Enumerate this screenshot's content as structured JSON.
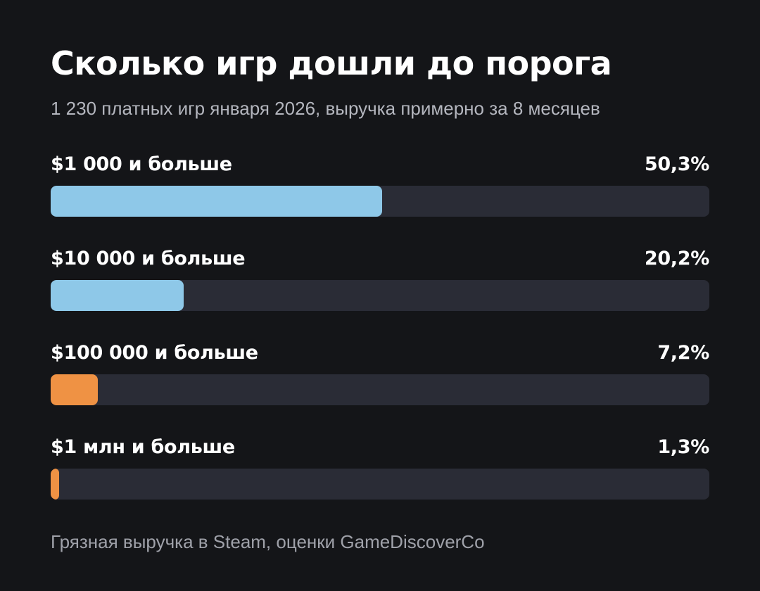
{
  "title": "Сколько игр дошли до порога",
  "subtitle": "1 230 платных игр января 2026, выручка примерно за 8 месяцев",
  "footnote": "Грязная выручка в Steam, оценки GameDiscoverCo",
  "colors": {
    "background": "#141518",
    "track": "#2a2c36",
    "blue": "#8ec8e8",
    "orange": "#ef9244"
  },
  "chart_data": {
    "type": "bar",
    "orientation": "horizontal",
    "categories": [
      "$1 000 и больше",
      "$10 000 и больше",
      "$100 000 и больше",
      "$1 млн и больше"
    ],
    "values": [
      50.3,
      20.2,
      7.2,
      1.3
    ],
    "value_labels": [
      "50,3%",
      "20,2%",
      "7,2%",
      "1,3%"
    ],
    "bar_colors": [
      "#8ec8e8",
      "#8ec8e8",
      "#ef9244",
      "#ef9244"
    ],
    "xlim": [
      0,
      100
    ],
    "title": "Сколько игр дошли до порога",
    "grid": false
  }
}
